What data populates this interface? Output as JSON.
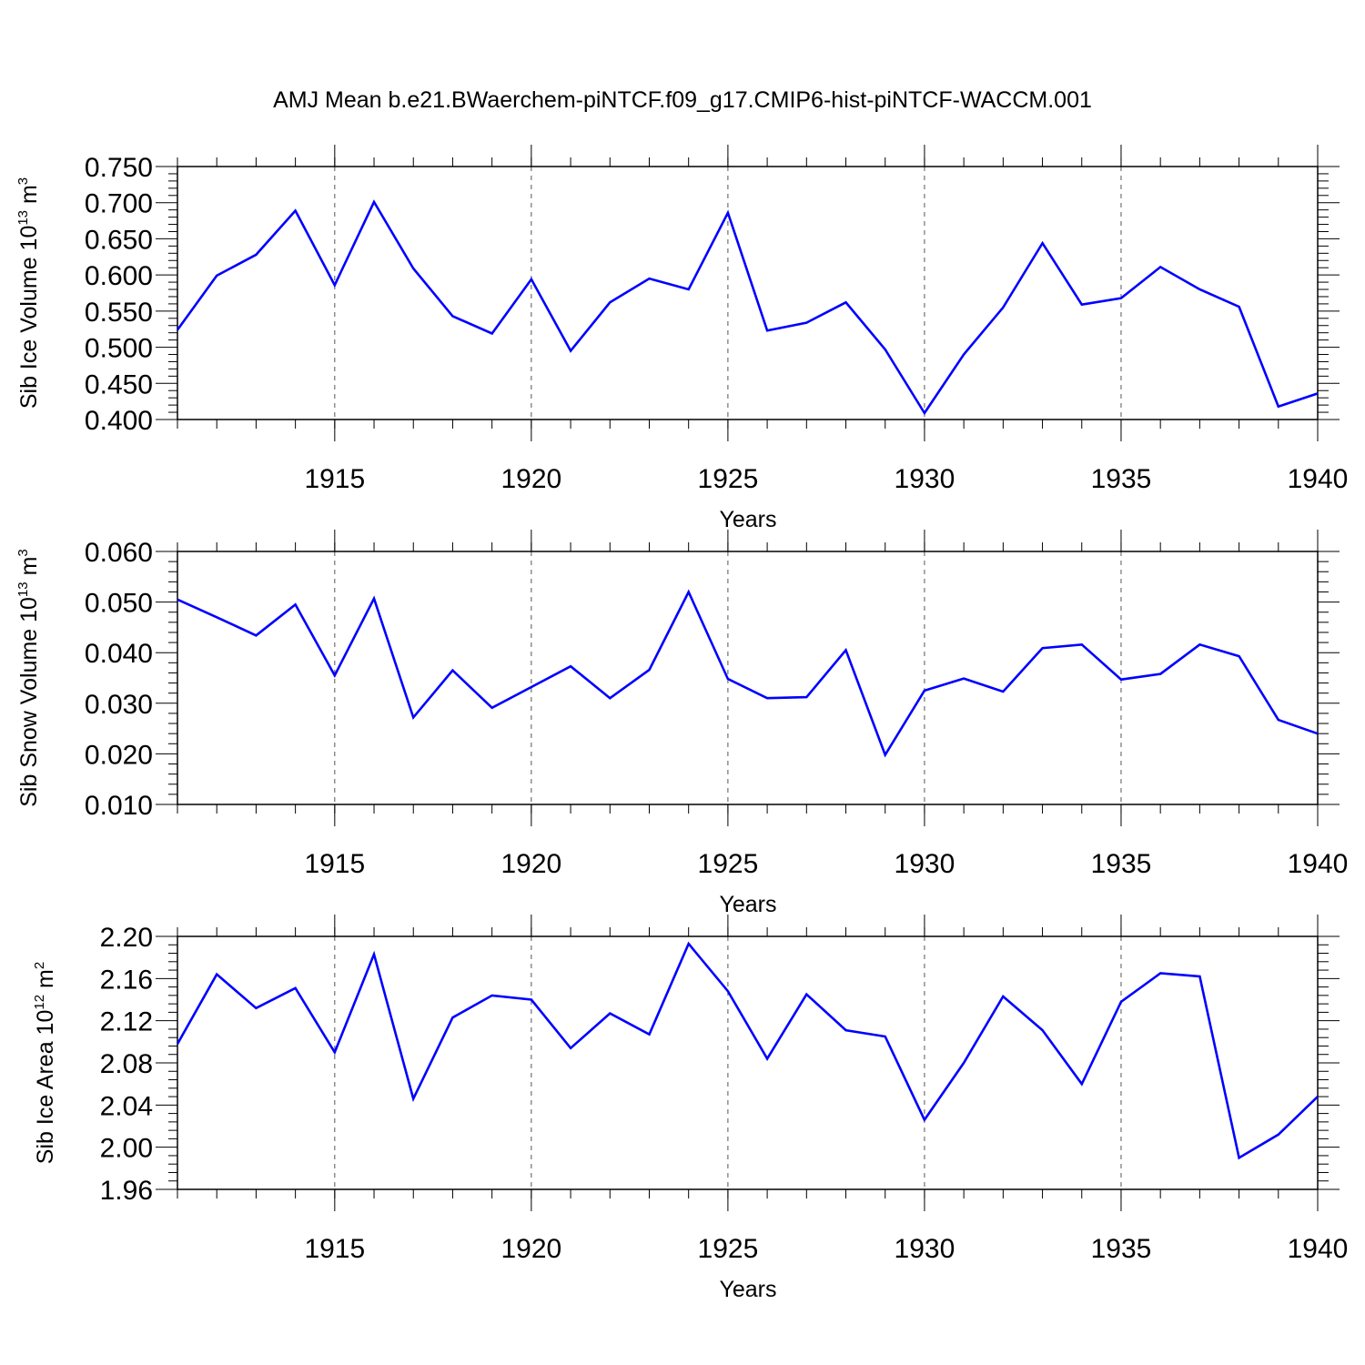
{
  "title": "AMJ Mean b.e21.BWaerchem-piNTCF.f09_g17.CMIP6-hist-piNTCF-WACCM.001",
  "colors": {
    "line": "#0000ff",
    "axis": "#000000",
    "grid": "#555555",
    "background": "#ffffff"
  },
  "chart_data": [
    {
      "type": "line",
      "xlabel": "Years",
      "ylabel": {
        "prefix": "Sib Ice Volume 10",
        "exponent": "13",
        "unit": " m",
        "unit_exponent": "3"
      },
      "xlim": [
        1911,
        1940
      ],
      "ylim": [
        0.4,
        0.75
      ],
      "x_ticks": [
        "1915",
        "1920",
        "1925",
        "1930",
        "1935",
        "1940"
      ],
      "y_ticks": [
        "0.400",
        "0.450",
        "0.500",
        "0.550",
        "0.600",
        "0.650",
        "0.700",
        "0.750"
      ],
      "grid": "vertical dashed at x major ticks",
      "x": [
        1911,
        1912,
        1913,
        1914,
        1915,
        1916,
        1917,
        1918,
        1919,
        1920,
        1921,
        1922,
        1923,
        1924,
        1925,
        1926,
        1927,
        1928,
        1929,
        1930,
        1931,
        1932,
        1933,
        1934,
        1935,
        1936,
        1937,
        1938,
        1939,
        1940
      ],
      "values": [
        0.524,
        0.599,
        0.628,
        0.689,
        0.586,
        0.701,
        0.609,
        0.543,
        0.519,
        0.594,
        0.495,
        0.562,
        0.595,
        0.58,
        0.686,
        0.523,
        0.534,
        0.562,
        0.497,
        0.409,
        0.49,
        0.555,
        0.644,
        0.559,
        0.568,
        0.611,
        0.58,
        0.556,
        0.418,
        0.436
      ]
    },
    {
      "type": "line",
      "xlabel": "Years",
      "ylabel": {
        "prefix": "Sib Snow Volume 10",
        "exponent": "13",
        "unit": " m",
        "unit_exponent": "3"
      },
      "xlim": [
        1911,
        1940
      ],
      "ylim": [
        0.01,
        0.06
      ],
      "x_ticks": [
        "1915",
        "1920",
        "1925",
        "1930",
        "1935",
        "1940"
      ],
      "y_ticks": [
        "0.010",
        "0.020",
        "0.030",
        "0.040",
        "0.050",
        "0.060"
      ],
      "grid": "vertical dashed at x major ticks",
      "x": [
        1911,
        1912,
        1913,
        1914,
        1915,
        1916,
        1917,
        1918,
        1919,
        1920,
        1921,
        1922,
        1923,
        1924,
        1925,
        1926,
        1927,
        1928,
        1929,
        1930,
        1931,
        1932,
        1933,
        1934,
        1935,
        1936,
        1937,
        1938,
        1939,
        1940
      ],
      "values": [
        0.0505,
        0.047,
        0.0434,
        0.0495,
        0.0355,
        0.0507,
        0.0272,
        0.0365,
        0.0291,
        0.0332,
        0.0373,
        0.031,
        0.0366,
        0.052,
        0.0348,
        0.031,
        0.0312,
        0.0405,
        0.0198,
        0.0325,
        0.0349,
        0.0323,
        0.0409,
        0.0416,
        0.0347,
        0.0358,
        0.0416,
        0.0393,
        0.0267,
        0.024
      ]
    },
    {
      "type": "line",
      "xlabel": "Years",
      "ylabel": {
        "prefix": "Sib Ice Area 10",
        "exponent": "12",
        "unit": " m",
        "unit_exponent": "2"
      },
      "xlim": [
        1911,
        1940
      ],
      "ylim": [
        1.96,
        2.2
      ],
      "x_ticks": [
        "1915",
        "1920",
        "1925",
        "1930",
        "1935",
        "1940"
      ],
      "y_ticks": [
        "1.96",
        "2.00",
        "2.04",
        "2.08",
        "2.12",
        "2.16",
        "2.20"
      ],
      "grid": "vertical dashed at x major ticks",
      "x": [
        1911,
        1912,
        1913,
        1914,
        1915,
        1916,
        1917,
        1918,
        1919,
        1920,
        1921,
        1922,
        1923,
        1924,
        1925,
        1926,
        1927,
        1928,
        1929,
        1930,
        1931,
        1932,
        1933,
        1934,
        1935,
        1936,
        1937,
        1938,
        1939,
        1940
      ],
      "values": [
        2.098,
        2.164,
        2.132,
        2.151,
        2.09,
        2.183,
        2.046,
        2.123,
        2.144,
        2.14,
        2.094,
        2.127,
        2.107,
        2.193,
        2.148,
        2.084,
        2.145,
        2.111,
        2.105,
        2.026,
        2.08,
        2.143,
        2.111,
        2.06,
        2.138,
        2.165,
        2.162,
        1.99,
        2.012,
        2.048
      ]
    }
  ]
}
